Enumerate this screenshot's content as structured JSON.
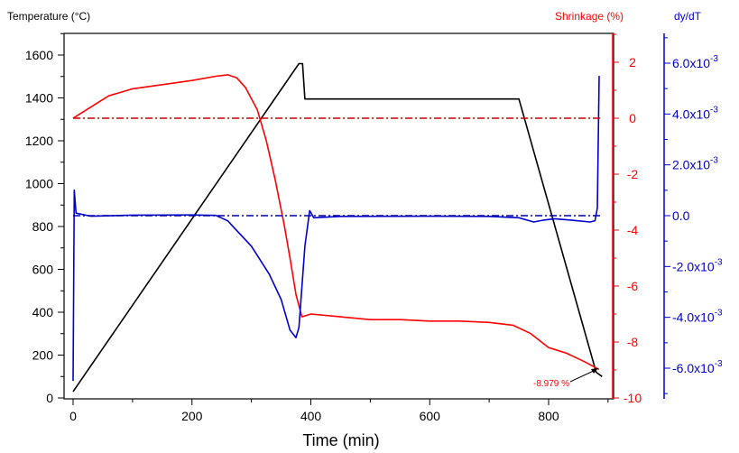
{
  "chart_data": {
    "type": "line",
    "xlabel": "Time (min)",
    "x_ticks": [
      "0",
      "200",
      "400",
      "600",
      "800"
    ],
    "xlim": [
      0,
      900
    ],
    "axes": {
      "left": {
        "title": "Temperature (°C)",
        "range": [
          0,
          1700
        ],
        "ticks": [
          "0",
          "200",
          "400",
          "600",
          "800",
          "1000",
          "1200",
          "1400",
          "1600"
        ],
        "color": "#000000"
      },
      "right1": {
        "title": "Shrinkage (%)",
        "range": [
          -10,
          3
        ],
        "ticks": [
          "2",
          "0",
          "-2",
          "-4",
          "-6",
          "-8",
          "-10"
        ],
        "color": "#ff0000"
      },
      "right2": {
        "title": "dy/dT",
        "range": [
          -0.0075,
          0.0075
        ],
        "ticks": [
          "6.0x10^-3",
          "4.0x10^-3",
          "2.0x10^-3",
          "0.0",
          "-2.0x10^-3",
          "-4.0x10^-3",
          "-6.0x10^-3"
        ],
        "color": "#0000cc"
      }
    },
    "series": [
      {
        "axis": "left",
        "color": "#000000",
        "style": "solid",
        "points": [
          [
            0,
            30
          ],
          [
            380,
            1560
          ],
          [
            386,
            1560
          ],
          [
            390,
            1395
          ],
          [
            750,
            1395
          ],
          [
            880,
            120
          ],
          [
            890,
            100
          ]
        ]
      },
      {
        "axis": "right1",
        "color": "#ff0000",
        "style": "solid",
        "points": [
          [
            0,
            0
          ],
          [
            30,
            0.4
          ],
          [
            60,
            0.8
          ],
          [
            100,
            1.05
          ],
          [
            150,
            1.2
          ],
          [
            200,
            1.35
          ],
          [
            240,
            1.5
          ],
          [
            260,
            1.55
          ],
          [
            275,
            1.45
          ],
          [
            290,
            1.1
          ],
          [
            310,
            0.3
          ],
          [
            325,
            -0.8
          ],
          [
            340,
            -2.2
          ],
          [
            355,
            -3.8
          ],
          [
            365,
            -5.0
          ],
          [
            375,
            -6.3
          ],
          [
            385,
            -7.1
          ],
          [
            400,
            -7.0
          ],
          [
            450,
            -7.1
          ],
          [
            500,
            -7.2
          ],
          [
            550,
            -7.2
          ],
          [
            600,
            -7.25
          ],
          [
            650,
            -7.25
          ],
          [
            700,
            -7.3
          ],
          [
            740,
            -7.4
          ],
          [
            770,
            -7.7
          ],
          [
            800,
            -8.2
          ],
          [
            830,
            -8.4
          ],
          [
            860,
            -8.7
          ],
          [
            885,
            -8.98
          ]
        ]
      },
      {
        "axis": "right2",
        "color": "#0000cc",
        "style": "solid",
        "points": [
          [
            0,
            -0.0065
          ],
          [
            2,
            0.001
          ],
          [
            5,
            0.0001
          ],
          [
            30,
            -2e-05
          ],
          [
            100,
            2e-05
          ],
          [
            200,
            3e-05
          ],
          [
            240,
            1e-05
          ],
          [
            260,
            -0.0002
          ],
          [
            280,
            -0.0007
          ],
          [
            300,
            -0.0012
          ],
          [
            330,
            -0.0023
          ],
          [
            350,
            -0.0033
          ],
          [
            365,
            -0.0045
          ],
          [
            375,
            -0.0048
          ],
          [
            380,
            -0.0044
          ],
          [
            390,
            -0.0012
          ],
          [
            398,
            0.0002
          ],
          [
            405,
            -8e-05
          ],
          [
            450,
            -3e-05
          ],
          [
            600,
            -2e-05
          ],
          [
            700,
            -3e-05
          ],
          [
            750,
            -8e-05
          ],
          [
            775,
            -0.00025
          ],
          [
            790,
            -0.00018
          ],
          [
            810,
            -0.00012
          ],
          [
            840,
            -0.00018
          ],
          [
            870,
            -0.00025
          ],
          [
            878,
            -0.0002
          ],
          [
            882,
            0.0003
          ],
          [
            885,
            0.0055
          ]
        ]
      },
      {
        "axis": "right1",
        "color": "#cc0000",
        "style": "dashdot",
        "points": [
          [
            0,
            0
          ],
          [
            890,
            0
          ]
        ]
      },
      {
        "axis": "right2",
        "color": "#0000aa",
        "style": "dashdot",
        "points": [
          [
            0,
            0
          ],
          [
            890,
            0
          ]
        ]
      }
    ],
    "annotations": [
      {
        "text": "-8.979 %",
        "color": "#ff0000"
      }
    ]
  }
}
